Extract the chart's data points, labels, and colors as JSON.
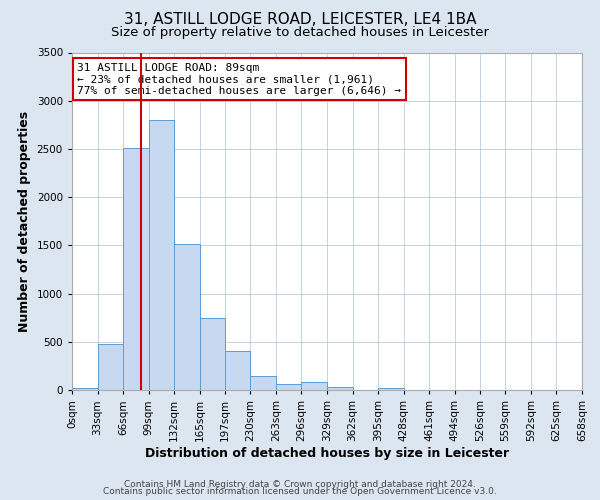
{
  "title": "31, ASTILL LODGE ROAD, LEICESTER, LE4 1BA",
  "subtitle": "Size of property relative to detached houses in Leicester",
  "xlabel": "Distribution of detached houses by size in Leicester",
  "ylabel": "Number of detached properties",
  "bar_edges": [
    0,
    33,
    66,
    99,
    132,
    165,
    197,
    230,
    263,
    296,
    329,
    362,
    395,
    428,
    461,
    494,
    526,
    559,
    592,
    625,
    658
  ],
  "bar_heights": [
    25,
    480,
    2510,
    2800,
    1510,
    750,
    400,
    150,
    60,
    80,
    30,
    0,
    20,
    0,
    0,
    0,
    0,
    0,
    0,
    0
  ],
  "bar_color": "#c6d9f0",
  "bar_edge_color": "#5b9bd5",
  "property_value": 89,
  "vline_color": "#cc0000",
  "annotation_line1": "31 ASTILL LODGE ROAD: 89sqm",
  "annotation_line2": "← 23% of detached houses are smaller (1,961)",
  "annotation_line3": "77% of semi-detached houses are larger (6,646) →",
  "annotation_box_color": "#ffffff",
  "annotation_box_edge_color": "#cc0000",
  "xlim": [
    0,
    658
  ],
  "ylim": [
    0,
    3500
  ],
  "yticks": [
    0,
    500,
    1000,
    1500,
    2000,
    2500,
    3000,
    3500
  ],
  "xtick_labels": [
    "0sqm",
    "33sqm",
    "66sqm",
    "99sqm",
    "132sqm",
    "165sqm",
    "197sqm",
    "230sqm",
    "263sqm",
    "296sqm",
    "329sqm",
    "362sqm",
    "395sqm",
    "428sqm",
    "461sqm",
    "494sqm",
    "526sqm",
    "559sqm",
    "592sqm",
    "625sqm",
    "658sqm"
  ],
  "footer_line1": "Contains HM Land Registry data © Crown copyright and database right 2024.",
  "footer_line2": "Contains public sector information licensed under the Open Government Licence v3.0.",
  "bg_color": "#dce6f1",
  "plot_bg_color": "#ffffff",
  "title_fontsize": 11,
  "subtitle_fontsize": 9.5,
  "axis_label_fontsize": 9,
  "tick_fontsize": 7.5,
  "annotation_fontsize": 8,
  "footer_fontsize": 6.5
}
